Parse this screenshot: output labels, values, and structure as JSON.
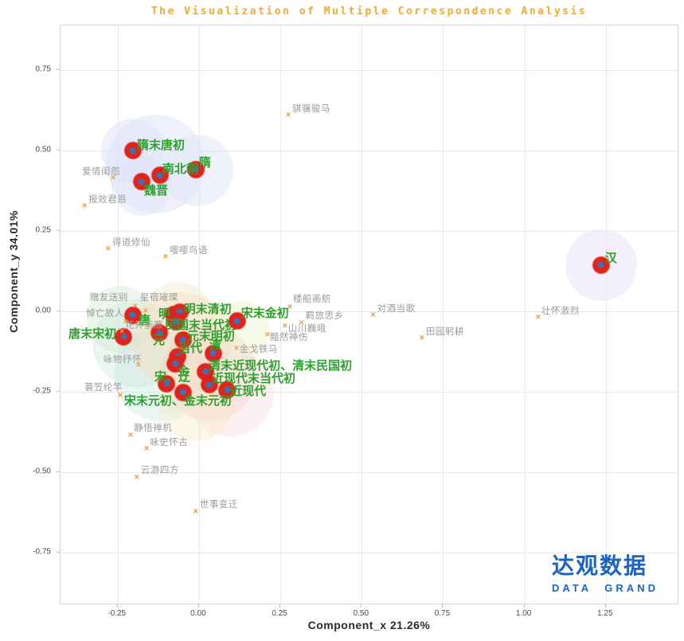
{
  "logo": {
    "cn": "达观数据",
    "en": "DATA GRAND"
  },
  "colors": {
    "title": "#ffa629",
    "dynasty_label": "#2da02d",
    "dot": "#e2231a",
    "dot_center": "#3b72b4",
    "topic_marker": "#f59b35",
    "topic_label": "#9b9b9b",
    "logo_blue": "#1c64c2",
    "grid": "#e9e9e9",
    "border": "#d6d6d6",
    "tick_text": "#4a4a4a"
  },
  "chart_data": {
    "type": "scatter",
    "title": "The Visualization of Multiple Correspondence Analysis",
    "xlabel": "Component_x 21.26%",
    "ylabel": "Component_y 34.01%",
    "grid": true,
    "legend": "none",
    "x_range": [
      -0.4255,
      1.4755
    ],
    "y_range": [
      -0.9133,
      0.8886
    ],
    "x_ticks": {
      "values": [
        -0.25,
        0.0,
        0.25,
        0.5,
        0.75,
        1.0,
        1.25
      ],
      "labels": [
        "-0.25",
        "0.00",
        "0.25",
        "0.50",
        "0.75",
        "1.00",
        "1.25"
      ]
    },
    "y_ticks": {
      "values": [
        0.75,
        0.5,
        0.25,
        0.0,
        -0.25,
        -0.5,
        -0.75
      ],
      "labels": [
        "0.75",
        "0.50",
        "0.25",
        "0.00",
        "-0.25",
        "-0.50",
        "-0.75"
      ]
    },
    "series": [
      {
        "name": "dynasties",
        "marker": "filled-circle",
        "points": [
          {
            "label": "隋末唐初",
            "x": -0.203,
            "y": 0.5,
            "dx": 5,
            "dy": -14
          },
          {
            "label": "隋",
            "x": -0.01,
            "y": 0.441,
            "dx": 4,
            "dy": -16
          },
          {
            "label": "南北朝",
            "x": -0.12,
            "y": 0.423,
            "dx": 3,
            "dy": -15
          },
          {
            "label": "魏晋",
            "x": -0.176,
            "y": 0.403,
            "dx": 3,
            "dy": 4
          },
          {
            "label": "汉",
            "x": 1.235,
            "y": 0.144,
            "dx": 5,
            "dy": -16
          },
          {
            "label": "唐",
            "x": -0.203,
            "y": -0.012,
            "dx": 7,
            "dy": -1
          },
          {
            "label": "明",
            "x": -0.078,
            "y": -0.01,
            "dx": -19,
            "dy": -8
          },
          {
            "label": "明末清初",
            "x": -0.059,
            "y": -0.002,
            "dx": 5,
            "dy": -11
          },
          {
            "label": "民国末当代初",
            "x": -0.071,
            "y": -0.032,
            "dx": -14,
            "dy": -3
          },
          {
            "label": "元",
            "x": -0.122,
            "y": -0.067,
            "dx": -8,
            "dy": 2
          },
          {
            "label": "元末明初",
            "x": -0.049,
            "y": -0.089,
            "dx": 5,
            "dy": -12
          },
          {
            "label": "宋末金初",
            "x": 0.117,
            "y": -0.03,
            "dx": 5,
            "dy": -17
          },
          {
            "label": "唐末宋初",
            "x": -0.232,
            "y": -0.079,
            "dx": -69,
            "dy": -11
          },
          {
            "label": "当代",
            "x": -0.066,
            "y": -0.141,
            "dx": 1,
            "dy": -18
          },
          {
            "label": "清",
            "x": 0.044,
            "y": -0.131,
            "dx": -5,
            "dy": -18
          },
          {
            "label": "金",
            "x": -0.073,
            "y": -0.163,
            "dx": 3,
            "dy": 2
          },
          {
            "label": "清末近现代初、清末民国初",
            "x": 0.02,
            "y": -0.188,
            "dx": 4,
            "dy": -15
          },
          {
            "label": "宋、辽",
            "x": -0.1,
            "y": -0.225,
            "dx": -15,
            "dy": -16
          },
          {
            "label": "近现代末当代初",
            "x": 0.032,
            "y": -0.228,
            "dx": 3,
            "dy": -15
          },
          {
            "label": "近现代",
            "x": 0.086,
            "y": -0.245,
            "dx": 4,
            "dy": -6
          },
          {
            "label": "宋末元初、金末元初",
            "x": -0.049,
            "y": -0.252,
            "dx": -74,
            "dy": 3
          }
        ]
      },
      {
        "name": "topics",
        "marker": "x",
        "points": [
          {
            "label": "爱情闺怨",
            "x": -0.264,
            "y": 0.413,
            "dx": -39,
            "dy": -13
          },
          {
            "label": "报效君恩",
            "x": -0.352,
            "y": 0.327,
            "dx": 5,
            "dy": -13
          },
          {
            "label": "得道修仙",
            "x": -0.279,
            "y": 0.193,
            "dx": 5,
            "dy": -13
          },
          {
            "label": "嘤嘤鸟语",
            "x": -0.103,
            "y": 0.168,
            "dx": 5,
            "dy": -13
          },
          {
            "label": "骐骥骏马",
            "x": 0.274,
            "y": 0.609,
            "dx": 5,
            "dy": -13
          },
          {
            "label": "赠友送别",
            "x": -0.196,
            "y": 0.015,
            "dx": -57,
            "dy": -16
          },
          {
            "label": "星宿璀璨",
            "x": -0.164,
            "y": 0.0,
            "dx": -7,
            "dy": -22
          },
          {
            "label": "悼亡故人",
            "x": -0.225,
            "y": -0.035,
            "dx": -50,
            "dy": -16
          },
          {
            "label": "花开荼蘼",
            "x": -0.237,
            "y": -0.064,
            "dx": 4,
            "dy": -13
          },
          {
            "label": "咏物抒怀",
            "x": -0.186,
            "y": -0.168,
            "dx": -44,
            "dy": -12
          },
          {
            "label": "蓑笠纶竿",
            "x": -0.242,
            "y": -0.262,
            "dx": -45,
            "dy": -15
          },
          {
            "label": "静悟禅机",
            "x": -0.21,
            "y": -0.386,
            "dx": 4,
            "dy": -14
          },
          {
            "label": "咏史怀古",
            "x": -0.161,
            "y": -0.428,
            "dx": 4,
            "dy": -13
          },
          {
            "label": "云游四方",
            "x": -0.191,
            "y": -0.517,
            "dx": 5,
            "dy": -14
          },
          {
            "label": "世事变迁",
            "x": -0.01,
            "y": -0.624,
            "dx": 5,
            "dy": -14
          },
          {
            "label": "楼船画舫",
            "x": 0.279,
            "y": 0.012,
            "dx": 4,
            "dy": -15
          },
          {
            "label": "羁旅思乡",
            "x": 0.315,
            "y": -0.037,
            "dx": 5,
            "dy": -14
          },
          {
            "label": "山川巍峨",
            "x": 0.264,
            "y": -0.047,
            "dx": 4,
            "dy": -2
          },
          {
            "label": "黯然神伤",
            "x": 0.21,
            "y": -0.074,
            "dx": 3,
            "dy": -2
          },
          {
            "label": "金戈铁马",
            "x": 0.115,
            "y": -0.116,
            "dx": 4,
            "dy": -4
          },
          {
            "label": "对酒当歌",
            "x": 0.535,
            "y": -0.012,
            "dx": 5,
            "dy": -13
          },
          {
            "label": "田园躬耕",
            "x": 0.685,
            "y": -0.084,
            "dx": 5,
            "dy": -13
          },
          {
            "label": "壮怀激烈",
            "x": 1.042,
            "y": -0.02,
            "dx": 4,
            "dy": -13
          }
        ]
      }
    ],
    "bubbles": [
      {
        "x": -0.132,
        "y": 0.458,
        "r": 62,
        "color": "#dde2f7",
        "opacity": 0.5
      },
      {
        "x": -0.203,
        "y": 0.5,
        "r": 40,
        "color": "#dde2f7",
        "opacity": 0.5
      },
      {
        "x": -0.005,
        "y": 0.438,
        "r": 45,
        "color": "#dde2f7",
        "opacity": 0.45
      },
      {
        "x": -0.176,
        "y": 0.391,
        "r": 38,
        "color": "#dde2f7",
        "opacity": 0.45
      },
      {
        "x": 1.235,
        "y": 0.144,
        "r": 45,
        "color": "#e9e3f7",
        "opacity": 0.55
      },
      {
        "x": -0.242,
        "y": -0.025,
        "r": 42,
        "color": "#d4ecd4",
        "opacity": 0.45
      },
      {
        "x": -0.193,
        "y": -0.099,
        "r": 55,
        "color": "#cfe9db",
        "opacity": 0.4
      },
      {
        "x": -0.12,
        "y": -0.198,
        "r": 58,
        "color": "#c6e7e2",
        "opacity": 0.4
      },
      {
        "x": -0.051,
        "y": -0.094,
        "r": 62,
        "color": "#f7dcba",
        "opacity": 0.45
      },
      {
        "x": -0.066,
        "y": -0.02,
        "r": 45,
        "color": "#f3e6c8",
        "opacity": 0.4
      },
      {
        "x": 0.032,
        "y": -0.193,
        "r": 60,
        "color": "#f6cfc2",
        "opacity": 0.4
      },
      {
        "x": 0.095,
        "y": -0.252,
        "r": 55,
        "color": "#f5d4de",
        "opacity": 0.35
      },
      {
        "x": -0.01,
        "y": -0.285,
        "r": 48,
        "color": "#f6ecc4",
        "opacity": 0.4
      },
      {
        "x": 0.125,
        "y": -0.062,
        "r": 38,
        "color": "#eaf2c8",
        "opacity": 0.4
      }
    ]
  }
}
